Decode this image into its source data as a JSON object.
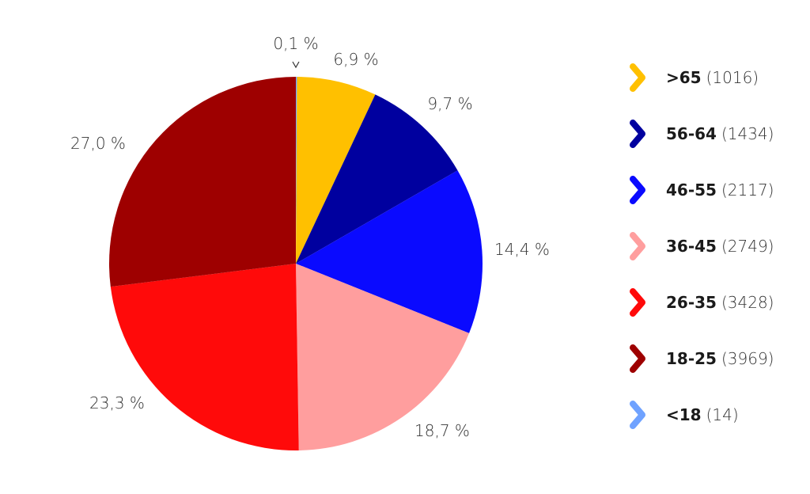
{
  "chart_data": {
    "type": "pie",
    "title": "",
    "slices": [
      {
        "label": ">65",
        "count": "(1016)",
        "value": 6.9,
        "value_label": "6,9 %",
        "color": "#ffc000"
      },
      {
        "label": "56-64",
        "count": "(1434)",
        "value": 9.7,
        "value_label": "9,7 %",
        "color": "#00009f"
      },
      {
        "label": "46-55",
        "count": "(2117)",
        "value": 14.4,
        "value_label": "14,4 %",
        "color": "#0a0aff"
      },
      {
        "label": "36-45",
        "count": "(2749)",
        "value": 18.7,
        "value_label": "18,7 %",
        "color": "#ff9e9e"
      },
      {
        "label": "26-35",
        "count": "(3428)",
        "value": 23.3,
        "value_label": "23,3 %",
        "color": "#ff0a0a"
      },
      {
        "label": "18-25",
        "count": "(3969)",
        "value": 27.0,
        "value_label": "27,0 %",
        "color": "#9e0000"
      },
      {
        "label": "<18",
        "count": "(14)",
        "value": 0.1,
        "value_label": "0,1 %",
        "color": "#6fa2ff"
      }
    ],
    "legend": "right"
  }
}
